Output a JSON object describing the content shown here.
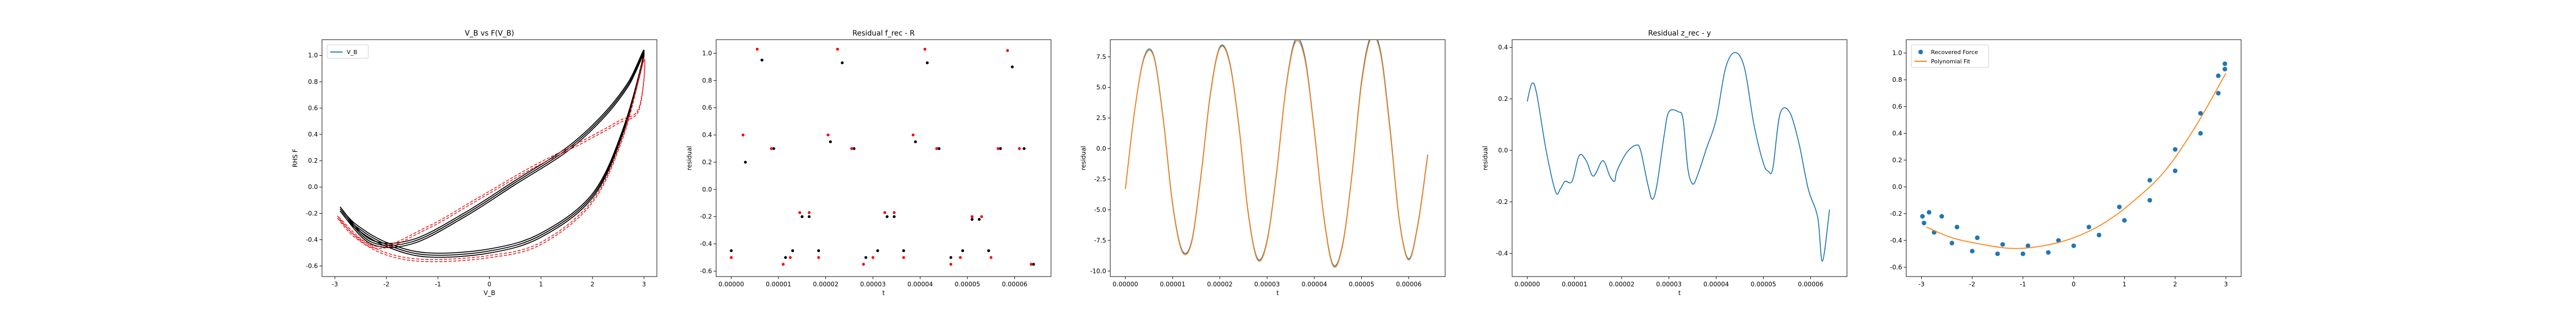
{
  "chart_data": [
    {
      "type": "line",
      "title": "V_B vs F(V_B)",
      "xlabel": "V_B",
      "ylabel": "RHS F",
      "xlim": [
        -3.25,
        3.25
      ],
      "ylim": [
        -0.68,
        1.12
      ],
      "xticks": [
        -3,
        -2,
        -1,
        0,
        1,
        2,
        3
      ],
      "yticks": [
        -0.6,
        -0.4,
        -0.2,
        0.0,
        0.2,
        0.4,
        0.6,
        0.8,
        1.0
      ],
      "xtick_labels": [
        "-3",
        "-2",
        "-1",
        "0",
        "1",
        "2",
        "3"
      ],
      "ytick_labels": [
        "-0.6",
        "-0.4",
        "-0.2",
        "0.0",
        "0.2",
        "0.4",
        "0.6",
        "0.8",
        "1.0"
      ],
      "legend": {
        "position": "top-left",
        "entries": [
          "V_B"
        ]
      },
      "series": [
        {
          "name": "V_B",
          "style": "line",
          "color": "#1f77b4",
          "values": []
        },
        {
          "style": "black-loops",
          "color": "#000000",
          "points": [
            [
              -2.9,
              -0.15
            ],
            [
              -2.6,
              -0.28
            ],
            [
              -2.0,
              -0.42
            ],
            [
              -1.2,
              -0.5
            ],
            [
              0,
              -0.47
            ],
            [
              1,
              -0.35
            ],
            [
              2,
              -0.05
            ],
            [
              2.6,
              0.45
            ],
            [
              3.0,
              1.03
            ],
            [
              2.7,
              0.8
            ],
            [
              2.2,
              0.55
            ],
            [
              1.5,
              0.3
            ],
            [
              0.5,
              0.05
            ],
            [
              -0.5,
              -0.2
            ],
            [
              -1.5,
              -0.4
            ],
            [
              -2.3,
              -0.4
            ],
            [
              -2.9,
              -0.15
            ]
          ]
        },
        {
          "style": "red-dashed-loops",
          "color": "#e41a1c",
          "points": [
            [
              -2.95,
              -0.22
            ],
            [
              -2.6,
              -0.37
            ],
            [
              -2.0,
              -0.5
            ],
            [
              -1.2,
              -0.55
            ],
            [
              0,
              -0.52
            ],
            [
              1,
              -0.42
            ],
            [
              2,
              -0.1
            ],
            [
              2.6,
              0.4
            ],
            [
              3.0,
              0.98
            ],
            [
              2.9,
              0.6
            ],
            [
              2.5,
              0.5
            ],
            [
              1.8,
              0.35
            ],
            [
              0.8,
              0.15
            ],
            [
              -0.3,
              -0.1
            ],
            [
              -1.2,
              -0.3
            ],
            [
              -2.2,
              -0.45
            ],
            [
              -2.95,
              -0.22
            ]
          ]
        }
      ]
    },
    {
      "type": "scatter",
      "title": "Residual f_rec - R",
      "xlabel": "t",
      "ylabel": "residual",
      "xlim": [
        -3.2e-06,
        6.77e-05
      ],
      "ylim": [
        -0.64,
        1.1
      ],
      "xticks": [
        0,
        1e-05,
        2e-05,
        3e-05,
        4e-05,
        5e-05,
        6e-05
      ],
      "yticks": [
        -0.6,
        -0.4,
        -0.2,
        0.0,
        0.2,
        0.4,
        0.6,
        0.8,
        1.0
      ],
      "xtick_labels": [
        "0.00000",
        "0.00001",
        "0.00002",
        "0.00003",
        "0.00004",
        "0.00005",
        "0.00006"
      ],
      "ytick_labels": [
        "-0.6",
        "-0.4",
        "-0.2",
        "0.0",
        "0.2",
        "0.4",
        "0.6",
        "0.8",
        "1.0"
      ],
      "series": [
        {
          "color": "#000000",
          "x": [
            0,
            3e-06,
            6.5e-06,
            9e-06,
            1.15e-05,
            1.3e-05,
            1.5e-05,
            1.65e-05,
            1.85e-05,
            2.1e-05,
            2.35e-05,
            2.6e-05,
            2.85e-05,
            3.1e-05,
            3.3e-05,
            3.45e-05,
            3.65e-05,
            3.9e-05,
            4.15e-05,
            4.4e-05,
            4.65e-05,
            4.9e-05,
            5.1e-05,
            5.25e-05,
            5.45e-05,
            5.7e-05,
            5.95e-05,
            6.2e-05,
            6.4e-05
          ],
          "y": [
            -0.45,
            0.2,
            0.95,
            0.3,
            -0.5,
            -0.45,
            -0.2,
            -0.2,
            -0.45,
            0.35,
            0.93,
            0.3,
            -0.5,
            -0.45,
            -0.2,
            -0.2,
            -0.45,
            0.35,
            0.93,
            0.3,
            -0.5,
            -0.45,
            -0.22,
            -0.22,
            -0.45,
            0.3,
            0.9,
            0.3,
            -0.55
          ]
        },
        {
          "color": "#ff0000",
          "x": [
            0,
            2.5e-06,
            5.5e-06,
            8.5e-06,
            1.1e-05,
            1.25e-05,
            1.45e-05,
            1.65e-05,
            1.85e-05,
            2.05e-05,
            2.25e-05,
            2.55e-05,
            2.8e-05,
            3e-05,
            3.25e-05,
            3.45e-05,
            3.65e-05,
            3.85e-05,
            4.1e-05,
            4.35e-05,
            4.65e-05,
            4.85e-05,
            5.1e-05,
            5.3e-05,
            5.5e-05,
            5.65e-05,
            5.85e-05,
            6.1e-05,
            6.35e-05
          ],
          "y": [
            -0.5,
            0.4,
            1.03,
            0.3,
            -0.55,
            -0.5,
            -0.17,
            -0.17,
            -0.5,
            0.4,
            1.03,
            0.3,
            -0.55,
            -0.5,
            -0.17,
            -0.17,
            -0.5,
            0.4,
            1.03,
            0.3,
            -0.55,
            -0.5,
            -0.2,
            -0.2,
            -0.5,
            0.3,
            1.02,
            0.3,
            -0.55
          ]
        }
      ]
    },
    {
      "type": "line",
      "title": "",
      "xlabel": "t",
      "ylabel": "residual",
      "xlim": [
        -3.2e-06,
        6.77e-05
      ],
      "ylim": [
        -10.45,
        8.9
      ],
      "xticks": [
        0,
        1e-05,
        2e-05,
        3e-05,
        4e-05,
        5e-05,
        6e-05
      ],
      "yticks": [
        -10.0,
        -7.5,
        -5.0,
        -2.5,
        0.0,
        2.5,
        5.0,
        7.5
      ],
      "xtick_labels": [
        "0.00000",
        "0.00001",
        "0.00002",
        "0.00003",
        "0.00004",
        "0.00005",
        "0.00006"
      ],
      "ytick_labels": [
        "-10.0",
        "-7.5",
        "-5.0",
        "-2.5",
        "0.0",
        "2.5",
        "5.0",
        "7.5"
      ],
      "series": [
        {
          "color": "#1f77b4",
          "x": [
            0,
            2e-06,
            4e-06,
            6e-06,
            8e-06,
            1e-05,
            1.2e-05,
            1.4e-05,
            1.6e-05,
            1.8e-05,
            2e-05,
            2.2e-05,
            2.4e-05,
            2.6e-05,
            2.8e-05,
            3e-05,
            3.2e-05,
            3.4e-05,
            3.6e-05,
            3.8e-05,
            4e-05,
            4.2e-05,
            4.4e-05,
            4.6e-05,
            4.8e-05,
            5e-05,
            5.2e-05,
            5.4e-05,
            5.6e-05,
            5.8e-05,
            6e-05,
            6.2e-05,
            6.4e-05
          ],
          "y": [
            -3.3,
            3.2,
            7.5,
            7.6,
            2.5,
            -4.5,
            -8.3,
            -7.6,
            -2.2,
            4.5,
            8.3,
            7.2,
            2.0,
            -5.2,
            -9.0,
            -7.5,
            -2.0,
            5.0,
            8.9,
            7.5,
            1.5,
            -5.5,
            -9.5,
            -7.8,
            -2.0,
            5.5,
            9.2,
            8.0,
            1.8,
            -5.8,
            -9.0,
            -6.0,
            -0.5
          ]
        },
        {
          "color": "#ff7f0e",
          "x": [
            0,
            2e-06,
            4e-06,
            6e-06,
            8e-06,
            1e-05,
            1.2e-05,
            1.4e-05,
            1.6e-05,
            1.8e-05,
            2e-05,
            2.2e-05,
            2.4e-05,
            2.6e-05,
            2.8e-05,
            3e-05,
            3.2e-05,
            3.4e-05,
            3.6e-05,
            3.8e-05,
            4e-05,
            4.2e-05,
            4.4e-05,
            4.6e-05,
            4.8e-05,
            5e-05,
            5.2e-05,
            5.4e-05,
            5.6e-05,
            5.8e-05,
            6e-05,
            6.2e-05,
            6.4e-05
          ],
          "y": [
            -3.3,
            3.2,
            7.4,
            7.5,
            2.4,
            -4.6,
            -8.4,
            -7.7,
            -2.3,
            4.4,
            8.2,
            7.1,
            1.9,
            -5.3,
            -9.1,
            -7.6,
            -2.1,
            4.9,
            8.7,
            7.3,
            1.4,
            -5.6,
            -9.6,
            -7.9,
            -2.1,
            5.3,
            9.0,
            7.8,
            1.6,
            -5.9,
            -9.1,
            -6.1,
            -0.6
          ]
        }
      ]
    },
    {
      "type": "line",
      "title": "Residual z_rec - y",
      "xlabel": "t",
      "ylabel": "residual",
      "xlim": [
        -3.2e-06,
        6.77e-05
      ],
      "ylim": [
        -0.49,
        0.43
      ],
      "xticks": [
        0,
        1e-05,
        2e-05,
        3e-05,
        4e-05,
        5e-05,
        6e-05
      ],
      "yticks": [
        -0.4,
        -0.2,
        0.0,
        0.2,
        0.4
      ],
      "xtick_labels": [
        "0.00000",
        "0.00001",
        "0.00002",
        "0.00003",
        "0.00004",
        "0.00005",
        "0.00006"
      ],
      "ytick_labels": [
        "-0.4",
        "-0.2",
        "0.0",
        "0.2",
        "0.4"
      ],
      "series": [
        {
          "color": "#1f77b4",
          "x": [
            0,
            1e-06,
            2e-06,
            4e-06,
            6e-06,
            7e-06,
            8e-06,
            9.5e-06,
            1.1e-05,
            1.25e-05,
            1.4e-05,
            1.6e-05,
            1.75e-05,
            1.85e-05,
            1.9e-05,
            2.1e-05,
            2.3e-05,
            2.4e-05,
            2.55e-05,
            2.65e-05,
            2.75e-05,
            2.9e-05,
            3e-05,
            3.2e-05,
            3.3e-05,
            3.4e-05,
            3.5e-05,
            3.6e-05,
            3.8e-05,
            4e-05,
            4.2e-05,
            4.4e-05,
            4.6e-05,
            4.8e-05,
            5e-05,
            5.1e-05,
            5.2e-05,
            5.35e-05,
            5.55e-05,
            5.75e-05,
            5.95e-05,
            6.15e-05,
            6.25e-05,
            6.4e-05
          ],
          "y": [
            0.19,
            0.26,
            0.22,
            0.0,
            -0.16,
            -0.15,
            -0.12,
            -0.12,
            -0.02,
            -0.04,
            -0.1,
            -0.04,
            -0.1,
            -0.12,
            -0.08,
            -0.01,
            0.02,
            0.0,
            -0.13,
            -0.19,
            -0.13,
            0.06,
            0.15,
            0.15,
            0.12,
            -0.07,
            -0.13,
            -0.1,
            0.01,
            0.12,
            0.32,
            0.38,
            0.32,
            0.1,
            -0.05,
            -0.08,
            -0.07,
            0.14,
            0.15,
            0.03,
            -0.15,
            -0.26,
            -0.43,
            -0.23
          ]
        }
      ]
    },
    {
      "type": "scatter",
      "title": "",
      "xlabel": "",
      "ylabel": "",
      "xlim": [
        -3.3,
        3.3
      ],
      "ylim": [
        -0.67,
        1.1
      ],
      "xticks": [
        -3,
        -2,
        -1,
        0,
        1,
        2,
        3
      ],
      "yticks": [
        -0.6,
        -0.4,
        -0.2,
        0.0,
        0.2,
        0.4,
        0.6,
        0.8,
        1.0
      ],
      "xtick_labels": [
        "-3",
        "-2",
        "-1",
        "0",
        "1",
        "2",
        "3"
      ],
      "ytick_labels": [
        "-0.6",
        "-0.4",
        "-0.2",
        "0.0",
        "0.2",
        "0.4",
        "0.6",
        "0.8",
        "1.0"
      ],
      "legend": {
        "position": "top-left",
        "entries": [
          "Recovered Force",
          "Polynomial Fit"
        ]
      },
      "series": [
        {
          "name": "Recovered Force",
          "style": "scatter",
          "color": "#1f77b4",
          "points": [
            [
              -2.98,
              -0.22
            ],
            [
              -2.85,
              -0.19
            ],
            [
              -2.6,
              -0.22
            ],
            [
              -2.3,
              -0.3
            ],
            [
              -1.9,
              -0.38
            ],
            [
              -1.4,
              -0.43
            ],
            [
              -0.9,
              -0.44
            ],
            [
              -0.3,
              -0.4
            ],
            [
              0.3,
              -0.3
            ],
            [
              0.9,
              -0.15
            ],
            [
              1.5,
              0.05
            ],
            [
              2.0,
              0.28
            ],
            [
              2.5,
              0.55
            ],
            [
              2.85,
              0.83
            ],
            [
              2.98,
              0.92
            ],
            [
              2.98,
              0.88
            ],
            [
              2.85,
              0.7
            ],
            [
              2.5,
              0.4
            ],
            [
              2.0,
              0.12
            ],
            [
              1.5,
              -0.1
            ],
            [
              1.0,
              -0.25
            ],
            [
              0.5,
              -0.36
            ],
            [
              0.0,
              -0.44
            ],
            [
              -0.5,
              -0.49
            ],
            [
              -1.0,
              -0.5
            ],
            [
              -1.5,
              -0.5
            ],
            [
              -2.0,
              -0.48
            ],
            [
              -2.4,
              -0.42
            ],
            [
              -2.75,
              -0.34
            ],
            [
              -2.95,
              -0.27
            ]
          ]
        },
        {
          "name": "Polynomial Fit",
          "style": "line",
          "color": "#ff7f0e",
          "points": [
            [
              -2.9,
              -0.3
            ],
            [
              -2.4,
              -0.38
            ],
            [
              -1.8,
              -0.43
            ],
            [
              -1.2,
              -0.46
            ],
            [
              -0.6,
              -0.44
            ],
            [
              0,
              -0.38
            ],
            [
              0.6,
              -0.27
            ],
            [
              1.2,
              -0.1
            ],
            [
              1.8,
              0.12
            ],
            [
              2.4,
              0.45
            ],
            [
              3.0,
              0.85
            ]
          ]
        }
      ]
    }
  ]
}
